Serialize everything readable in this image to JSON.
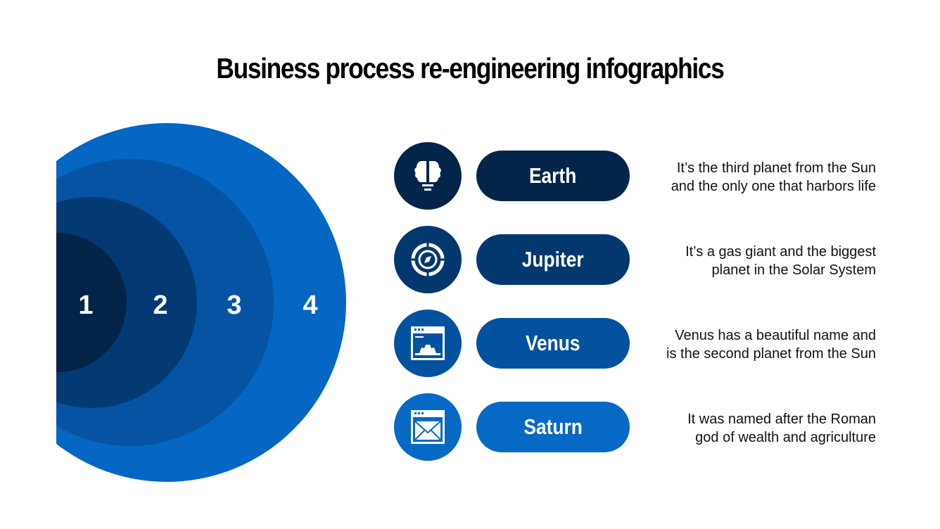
{
  "title": "Business process re-engineering infographics",
  "rings": [
    {
      "label": "1",
      "color": "#022449"
    },
    {
      "label": "2",
      "color": "#033a73"
    },
    {
      "label": "3",
      "color": "#0553a2"
    },
    {
      "label": "4",
      "color": "#0566c4"
    }
  ],
  "items": [
    {
      "name": "Earth",
      "icon": "brain-bulb-icon",
      "color": "#03254a",
      "desc1": "It’s the third planet from the Sun",
      "desc2": "and the only one that harbors life"
    },
    {
      "name": "Jupiter",
      "icon": "compass-target-icon",
      "color": "#02386e",
      "desc1": "It’s a gas giant and the biggest",
      "desc2": "planet in the Solar System"
    },
    {
      "name": "Venus",
      "icon": "browser-gear-icon",
      "color": "#0352a0",
      "desc1": "Venus has a beautiful name and",
      "desc2": "is the second planet from the Sun"
    },
    {
      "name": "Saturn",
      "icon": "browser-mail-icon",
      "color": "#0569c5",
      "desc1": "It was named after the Roman",
      "desc2": "god of wealth and agriculture"
    }
  ]
}
